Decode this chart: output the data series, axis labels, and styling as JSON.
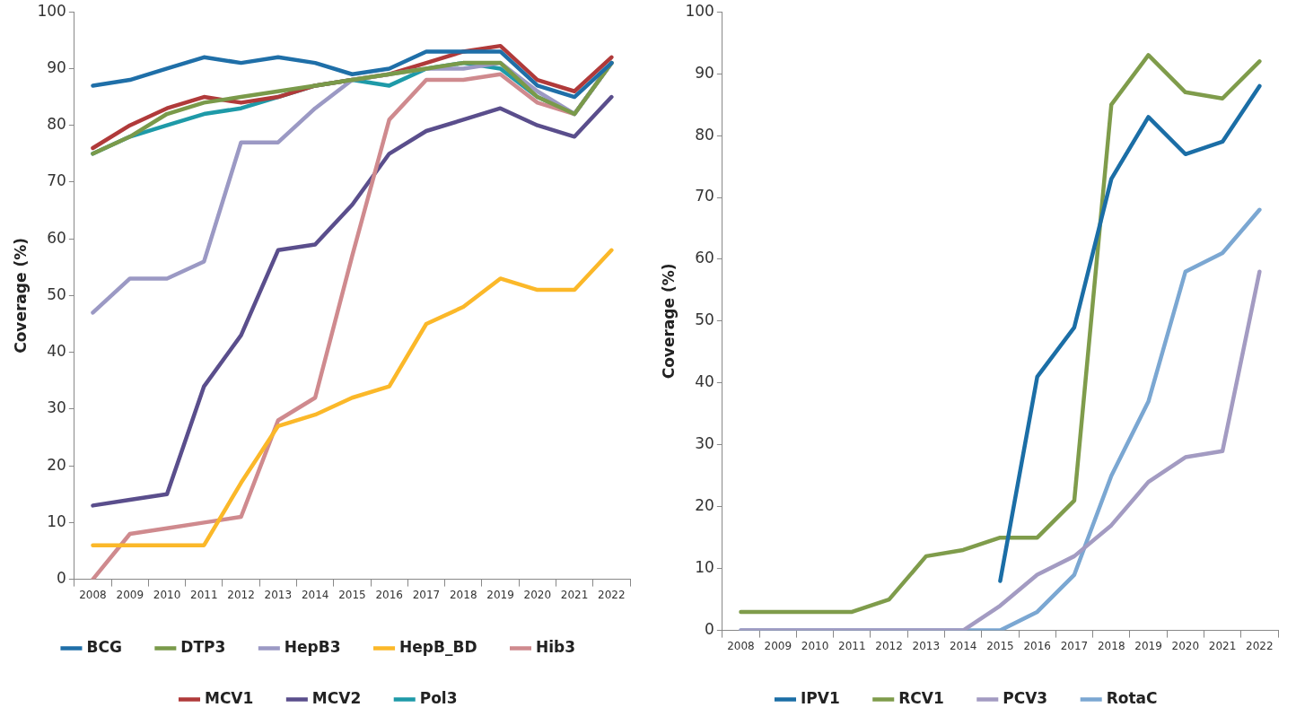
{
  "chart_data": [
    {
      "type": "line",
      "ylabel": "Coverage (%)",
      "categories": [
        "2008",
        "2009",
        "2010",
        "2011",
        "2012",
        "2013",
        "2014",
        "2015",
        "2016",
        "2017",
        "2018",
        "2019",
        "2020",
        "2021",
        "2022"
      ],
      "ylim": [
        0,
        100
      ],
      "yticks": [
        0,
        10,
        20,
        30,
        40,
        50,
        60,
        70,
        80,
        90,
        100
      ],
      "grid": false,
      "legend": "bottom",
      "marker": "none",
      "line_style": "solid",
      "series": [
        {
          "name": "BCG",
          "color": "#1f6fa8",
          "values": [
            87,
            88,
            90,
            92,
            91,
            92,
            91,
            89,
            90,
            93,
            93,
            93,
            87,
            85,
            91
          ]
        },
        {
          "name": "DTP3",
          "color": "#7a9a4a",
          "values": [
            75,
            78,
            82,
            84,
            85,
            86,
            87,
            88,
            89,
            90,
            91,
            91,
            85,
            82,
            91
          ]
        },
        {
          "name": "HepB3",
          "color": "#9b99c4",
          "values": [
            47,
            53,
            53,
            56,
            77,
            77,
            83,
            88,
            89,
            90,
            90,
            91,
            86,
            82,
            91
          ]
        },
        {
          "name": "HepB_BD",
          "color": "#fbb829",
          "values": [
            6,
            6,
            6,
            6,
            17,
            27,
            29,
            32,
            34,
            45,
            48,
            53,
            51,
            51,
            58
          ]
        },
        {
          "name": "Hib3",
          "color": "#cf8a8e",
          "values": [
            0,
            8,
            9,
            10,
            11,
            28,
            32,
            57,
            81,
            88,
            88,
            89,
            84,
            82,
            91
          ]
        },
        {
          "name": "MCV1",
          "color": "#b03a3a",
          "values": [
            76,
            80,
            83,
            85,
            84,
            85,
            87,
            88,
            89,
            91,
            93,
            94,
            88,
            86,
            92
          ]
        },
        {
          "name": "MCV2",
          "color": "#5a4e8c",
          "values": [
            13,
            14,
            15,
            34,
            43,
            58,
            59,
            66,
            75,
            79,
            81,
            83,
            80,
            78,
            85
          ]
        },
        {
          "name": "Pol3",
          "color": "#1e9aa8",
          "values": [
            75,
            78,
            80,
            82,
            83,
            85,
            87,
            88,
            87,
            90,
            91,
            90,
            85,
            82,
            91
          ]
        }
      ]
    },
    {
      "type": "line",
      "ylabel": "Coverage (%)",
      "categories": [
        "2008",
        "2009",
        "2010",
        "2011",
        "2012",
        "2013",
        "2014",
        "2015",
        "2016",
        "2017",
        "2018",
        "2019",
        "2020",
        "2021",
        "2022"
      ],
      "ylim": [
        0,
        100
      ],
      "yticks": [
        0,
        10,
        20,
        30,
        40,
        50,
        60,
        70,
        80,
        90,
        100
      ],
      "grid": false,
      "legend": "bottom",
      "marker": "none",
      "line_style": "solid",
      "series": [
        {
          "name": "IPV1",
          "color": "#1b6ea6",
          "values": [
            null,
            null,
            null,
            null,
            null,
            null,
            null,
            8,
            41,
            49,
            73,
            83,
            77,
            79,
            88
          ]
        },
        {
          "name": "RCV1",
          "color": "#7f9c4b",
          "values": [
            3,
            3,
            3,
            3,
            5,
            12,
            13,
            15,
            15,
            21,
            85,
            93,
            87,
            86,
            92
          ]
        },
        {
          "name": "PCV3",
          "color": "#a39bc2",
          "values": [
            0,
            0,
            0,
            0,
            0,
            0,
            0,
            4,
            9,
            12,
            17,
            24,
            28,
            29,
            58
          ]
        },
        {
          "name": "RotaC",
          "color": "#7ba7d2",
          "values": [
            0,
            0,
            0,
            0,
            0,
            0,
            0,
            0,
            3,
            9,
            25,
            37,
            58,
            61,
            68
          ]
        }
      ]
    }
  ]
}
